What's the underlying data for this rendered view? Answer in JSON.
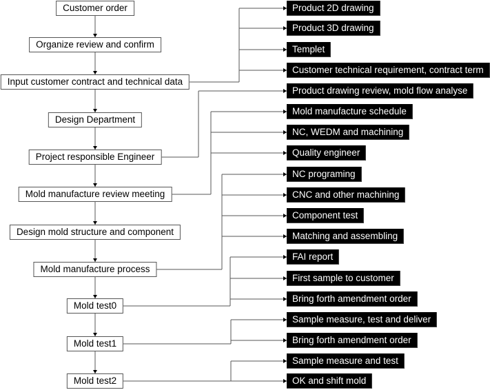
{
  "main_flow": [
    "Customer order",
    "Organize review and confirm",
    "Input customer contract and technical data",
    "Design Department",
    "Project responsible Engineer",
    "Mold manufacture review meeting",
    "Design mold structure and component",
    "Mold manufacture process",
    "Mold test0",
    "Mold test1",
    "Mold test2"
  ],
  "details": [
    "Product 2D drawing",
    "Product 3D drawing",
    "Templet",
    "Customer technical requirement, contract term",
    "Product drawing review, mold flow analyse",
    "Mold manufacture schedule",
    "NC, WEDM and machining",
    "Quality engineer",
    "NC programing",
    "CNC and other machining",
    "Component test",
    "Matching and assembling",
    "FAI report",
    "First sample to customer",
    "Bring forth amendment order",
    "Sample measure, test and deliver",
    "Bring forth amendment order",
    "Sample measure and test",
    "OK and shift mold"
  ],
  "branches": [
    {
      "from": 2,
      "to": [
        0,
        1,
        2,
        3
      ]
    },
    {
      "from": 4,
      "to": [
        4
      ]
    },
    {
      "from": 5,
      "to": [
        5,
        6,
        7
      ]
    },
    {
      "from": 7,
      "to": [
        8,
        9,
        10,
        11
      ]
    },
    {
      "from": 8,
      "to": [
        12,
        13,
        14
      ]
    },
    {
      "from": 9,
      "to": [
        15,
        16
      ]
    },
    {
      "from": 10,
      "to": [
        17,
        18
      ]
    }
  ],
  "colors": {
    "detail_bg": "#000000",
    "detail_text": "#ffffff",
    "line": "#555555"
  }
}
